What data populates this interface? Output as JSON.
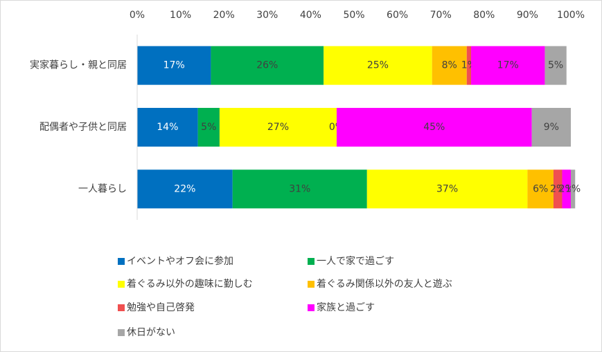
{
  "chart_data": {
    "type": "stacked-bar-horizontal",
    "categories": [
      "実家暮らし・親と同居",
      "配偶者や子供と同居",
      "一人暮らし"
    ],
    "series": [
      {
        "name": "イベントやオフ会に参加",
        "color": "#0070c0",
        "values": [
          17,
          14,
          22
        ],
        "value_labels": [
          "17%",
          "14%",
          "22%"
        ]
      },
      {
        "name": "一人で家で過ごす",
        "color": "#00b050",
        "values": [
          26,
          5,
          31
        ],
        "value_labels": [
          "26%",
          "5%",
          "31%"
        ]
      },
      {
        "name": "着ぐるみ以外の趣味に勤しむ",
        "color": "#ffff00",
        "values": [
          25,
          27,
          37
        ],
        "value_labels": [
          "25%",
          "27%",
          "37%"
        ]
      },
      {
        "name": "着ぐるみ関係以外の友人と遊ぶ",
        "color": "#ffc000",
        "values": [
          8,
          0,
          6
        ],
        "value_labels": [
          "8%",
          "0%",
          "6%"
        ]
      },
      {
        "name": "勉強や自己啓発",
        "color": "#f05050",
        "values": [
          1,
          null,
          2
        ],
        "value_labels": [
          "1%",
          null,
          "2%"
        ]
      },
      {
        "name": "家族と過ごす",
        "color": "#ff00ff",
        "values": [
          17,
          45,
          2
        ],
        "value_labels": [
          "17%",
          "45%",
          "2%"
        ]
      },
      {
        "name": "休日がない",
        "color": "#a6a6a6",
        "values": [
          5,
          9,
          1
        ],
        "value_labels": [
          "5%",
          "9%",
          "1%"
        ]
      }
    ],
    "xlim": [
      0,
      100
    ],
    "xticks": [
      {
        "value": 0,
        "label": "0%"
      },
      {
        "value": 10,
        "label": "10%"
      },
      {
        "value": 20,
        "label": "20%"
      },
      {
        "value": 30,
        "label": "30%"
      },
      {
        "value": 40,
        "label": "40%"
      },
      {
        "value": 50,
        "label": "50%"
      },
      {
        "value": 60,
        "label": "60%"
      },
      {
        "value": 70,
        "label": "70%"
      },
      {
        "value": 80,
        "label": "80%"
      },
      {
        "value": 90,
        "label": "90%"
      },
      {
        "value": 100,
        "label": "100%"
      }
    ],
    "legend_position": "bottom"
  }
}
